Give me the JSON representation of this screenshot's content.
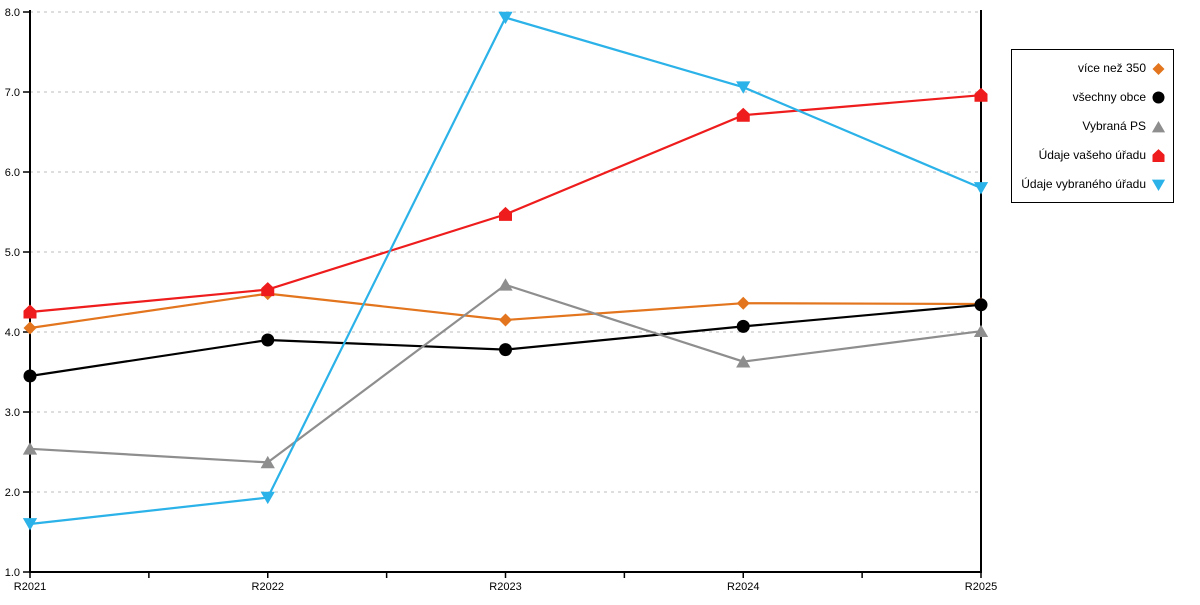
{
  "chart_data": {
    "type": "line",
    "title": "",
    "categories": [
      "R2021",
      "R2022",
      "R2023",
      "R2024",
      "R2025"
    ],
    "xlabel": "",
    "ylabel": "",
    "ylim": [
      1.0,
      8.0
    ],
    "y_ticks": [
      1.0,
      2.0,
      3.0,
      4.0,
      5.0,
      6.0,
      7.0,
      8.0
    ],
    "grid": "horizontal-dashed",
    "legend_position": "right",
    "series": [
      {
        "name": "více než 350",
        "marker": "diamond",
        "color": "#E2751D",
        "values": [
          4.05,
          4.48,
          4.15,
          4.36,
          4.35
        ]
      },
      {
        "name": "všechny obce",
        "marker": "circle",
        "color": "#000000",
        "values": [
          3.45,
          3.9,
          3.78,
          4.07,
          4.34
        ]
      },
      {
        "name": "Vybraná PS",
        "marker": "triangle-up",
        "color": "#8E8E8E",
        "values": [
          2.54,
          2.37,
          4.59,
          3.63,
          4.01
        ]
      },
      {
        "name": "Údaje vašeho úřadu",
        "marker": "pentagon",
        "color": "#EE1C1C",
        "values": [
          4.25,
          4.53,
          5.47,
          6.71,
          6.96
        ]
      },
      {
        "name": "Údaje vybraného úřadu",
        "marker": "triangle-down",
        "color": "#2BB2E8",
        "values": [
          1.6,
          1.93,
          7.93,
          7.06,
          5.8
        ]
      }
    ],
    "colors": {
      "grid_line": "#C9C9C9",
      "axis_line": "#000000",
      "background": "#FFFFFF"
    }
  }
}
